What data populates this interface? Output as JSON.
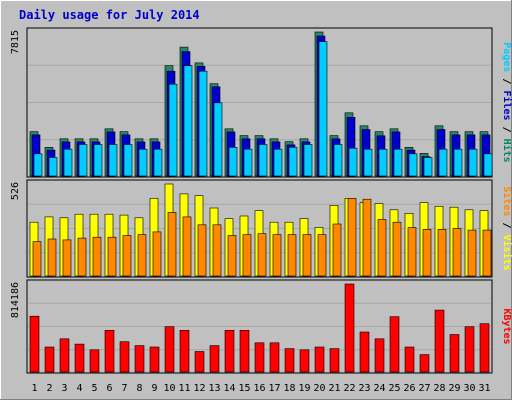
{
  "chart_data": {
    "type": "bar",
    "title": "Daily usage for July 2014",
    "categories": [
      "1",
      "2",
      "3",
      "4",
      "5",
      "6",
      "7",
      "8",
      "9",
      "10",
      "11",
      "12",
      "13",
      "14",
      "15",
      "16",
      "17",
      "18",
      "19",
      "20",
      "21",
      "22",
      "23",
      "24",
      "25",
      "26",
      "27",
      "28",
      "29",
      "30",
      "31"
    ],
    "weekend_days": [
      "5",
      "6",
      "12",
      "13",
      "19",
      "20",
      "26",
      "27"
    ],
    "panels": [
      {
        "name": "hits-files-pages",
        "max_label": "7815",
        "ylim": [
          0,
          7815
        ],
        "legend_right": [
          {
            "text": "Pages",
            "color": "#00ccff"
          },
          {
            "text": " / ",
            "color": "#000000"
          },
          {
            "text": "Files",
            "color": "#0000cc"
          },
          {
            "text": " / ",
            "color": "#000000"
          },
          {
            "text": "Hits",
            "color": "#008866"
          }
        ],
        "series": [
          {
            "name": "Hits",
            "color": "#006666",
            "values": [
              2440,
              1600,
              2060,
              2060,
              2060,
              2600,
              2440,
              2060,
              2060,
              6000,
              7000,
              6150,
              5030,
              2600,
              2230,
              2230,
              2060,
              1900,
              2060,
              7815,
              2230,
              3460,
              2760,
              2440,
              2600,
              1600,
              1270,
              2760,
              2440,
              2440,
              2440
            ]
          },
          {
            "name": "Files",
            "color": "#0000cc",
            "values": [
              2270,
              1450,
              1890,
              1890,
              1890,
              2430,
              2270,
              1890,
              1890,
              5700,
              6760,
              5960,
              4860,
              2430,
              2060,
              2060,
              1890,
              1730,
              1890,
              7600,
              2060,
              3220,
              2560,
              2220,
              2430,
              1450,
              1100,
              2560,
              2270,
              2270,
              2270
            ]
          },
          {
            "name": "Pages",
            "color": "#00ccff",
            "values": [
              1250,
              1050,
              1500,
              1750,
              1750,
              1750,
              1750,
              1500,
              1500,
              5000,
              6000,
              5700,
              4000,
              1600,
              1500,
              1750,
              1500,
              1600,
              1750,
              7300,
              1750,
              1550,
              1500,
              1500,
              1500,
              1250,
              1050,
              1500,
              1500,
              1500,
              1250
            ]
          }
        ]
      },
      {
        "name": "visits-sites",
        "max_label": "526",
        "ylim": [
          0,
          526
        ],
        "legend_right": [
          {
            "text": "Sites",
            "color": "#ff8800"
          },
          {
            "text": " / ",
            "color": "#000000"
          },
          {
            "text": "Visits",
            "color": "#ffff00"
          }
        ],
        "series": [
          {
            "name": "Visits",
            "color": "#ffff00",
            "values": [
              310,
              340,
              335,
              355,
              355,
              355,
              350,
              335,
              445,
              526,
              470,
              460,
              390,
              330,
              345,
              375,
              310,
              310,
              330,
              280,
              405,
              445,
              420,
              415,
              380,
              360,
              420,
              400,
              395,
              380,
              375
            ]
          },
          {
            "name": "Sites",
            "color": "#ff8800",
            "values": [
              200,
              215,
              210,
              220,
              225,
              225,
              235,
              240,
              255,
              365,
              340,
              295,
              295,
              235,
              240,
              245,
              240,
              240,
              240,
              240,
              300,
              445,
              440,
              325,
              310,
              280,
              270,
              270,
              275,
              265,
              265
            ]
          }
        ]
      },
      {
        "name": "kbytes",
        "max_label": "814186",
        "ylim": [
          0,
          814186
        ],
        "legend_right": [
          {
            "text": "KBytes",
            "color": "#ff0000"
          }
        ],
        "series": [
          {
            "name": "KBytes",
            "color": "#ff0000",
            "values": [
              520000,
              238000,
              313000,
              264000,
              212000,
              391000,
              286000,
              251000,
              238000,
              424000,
              391000,
              197000,
              251000,
              391000,
              391000,
              276000,
              276000,
              223000,
              212000,
              238000,
              223000,
              814186,
              375000,
              313000,
              515000,
              238000,
              168000,
              575000,
              352000,
              424000,
              451000
            ]
          }
        ]
      }
    ]
  }
}
